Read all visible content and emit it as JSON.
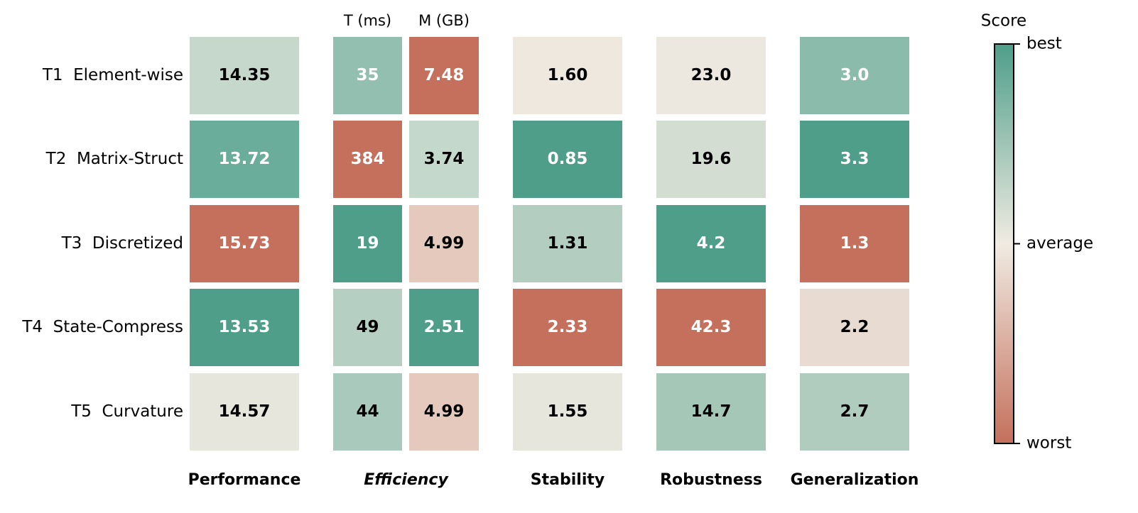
{
  "colorbar": {
    "title": "Score",
    "labels": [
      "best",
      "average",
      "worst"
    ],
    "colors": [
      "#4e9e8a",
      "#f0ebe2",
      "#c4705c"
    ]
  },
  "groups": [
    {
      "label": "Performance",
      "italic": false,
      "subcolumns": null
    },
    {
      "label": "Efficiency",
      "italic": true,
      "subcolumns": [
        "T (ms)",
        "M (GB)"
      ]
    },
    {
      "label": "Stability",
      "italic": false,
      "subcolumns": null
    },
    {
      "label": "Robustness",
      "italic": false,
      "subcolumns": null
    },
    {
      "label": "Generalization",
      "italic": false,
      "subcolumns": null
    }
  ],
  "rows": [
    "T1  Element-wise",
    "T2  Matrix-Struct",
    "T3  Discretized",
    "T4  State-Compress",
    "T5  Curvature"
  ],
  "cells": [
    [
      "14.35",
      "35",
      "7.48",
      "1.60",
      "23.0",
      "3.0"
    ],
    [
      "13.72",
      "384",
      "3.74",
      "0.85",
      "19.6",
      "3.3"
    ],
    [
      "15.73",
      "19",
      "4.99",
      "1.31",
      "4.2",
      "1.3"
    ],
    [
      "13.53",
      "49",
      "2.51",
      "2.33",
      "42.3",
      "2.2"
    ],
    [
      "14.57",
      "44",
      "4.99",
      "1.55",
      "14.7",
      "2.7"
    ]
  ],
  "colors": [
    [
      "#c6d8cb",
      "#92bfb0",
      "#c4705c",
      "#efe8df",
      "#ede8df",
      "#8bbcab"
    ],
    [
      "#6aad9a",
      "#c4705c",
      "#c5d8cc",
      "#4e9e8a",
      "#d3ddd2",
      "#4e9e8a"
    ],
    [
      "#c4705c",
      "#4e9e8a",
      "#e4c9bc",
      "#b3cdc0",
      "#4e9e8a",
      "#c4705c"
    ],
    [
      "#4e9e8a",
      "#b5cfc2",
      "#4e9e8a",
      "#c4705c",
      "#c4705c",
      "#e8dbd1"
    ],
    [
      "#e6e6dc",
      "#a8c9bb",
      "#e4c9bc",
      "#e6e6dc",
      "#a4c7b8",
      "#afccbe"
    ]
  ]
}
